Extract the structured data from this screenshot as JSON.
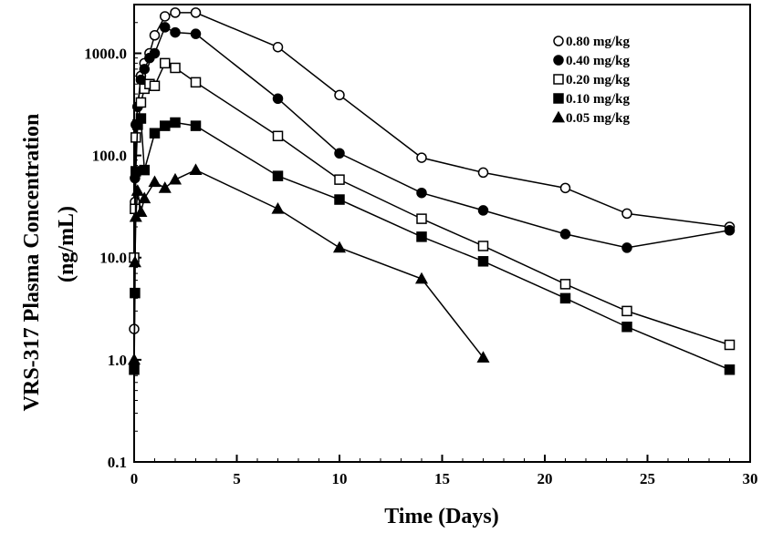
{
  "chart_data": {
    "type": "line",
    "yscale": "log",
    "xlabel": "Time (Days)",
    "ylabel_line1": "VRS-317 Plasma Concentration",
    "ylabel_line2": "(ng/mL)",
    "xlim": [
      0,
      30
    ],
    "ylim": [
      0.1,
      3000
    ],
    "x_ticks": [
      0,
      5,
      10,
      15,
      20,
      25,
      30
    ],
    "x_tick_labels": [
      "0",
      "5",
      "10",
      "15",
      "20",
      "25",
      "30"
    ],
    "y_ticks": [
      0.1,
      1,
      10,
      100,
      1000
    ],
    "y_tick_labels": [
      "0.1",
      "1.0",
      "10.0",
      "100.0",
      "1000.0"
    ],
    "grid": false,
    "legend_position": "top-right",
    "series": [
      {
        "name": "0.80 mg/kg",
        "marker": "circle-open",
        "x": [
          0,
          0.04,
          0.08,
          0.17,
          0.33,
          0.5,
          0.75,
          1,
          1.5,
          2,
          3,
          7,
          10,
          14,
          17,
          21,
          24,
          29
        ],
        "y": [
          2,
          35,
          150,
          300,
          600,
          800,
          1000,
          1500,
          2300,
          2500,
          2500,
          1150,
          390,
          95,
          68,
          48,
          27,
          20
        ]
      },
      {
        "name": "0.40 mg/kg",
        "marker": "circle-filled",
        "x": [
          0,
          0.04,
          0.08,
          0.17,
          0.33,
          0.5,
          0.75,
          1,
          1.5,
          2,
          3,
          7,
          10,
          14,
          17,
          21,
          24,
          29
        ],
        "y": [
          10,
          60,
          200,
          300,
          550,
          700,
          900,
          1000,
          1800,
          1600,
          1550,
          360,
          105,
          43,
          29,
          17,
          12.5,
          18.5
        ]
      },
      {
        "name": "0.20 mg/kg",
        "marker": "square-open",
        "x": [
          0,
          0.04,
          0.08,
          0.17,
          0.33,
          0.5,
          0.75,
          1,
          1.5,
          2,
          3,
          7,
          10,
          14,
          17,
          21,
          24,
          29
        ],
        "y": [
          10,
          30,
          150,
          200,
          330,
          450,
          500,
          480,
          800,
          720,
          520,
          155,
          58,
          24,
          13,
          5.5,
          3,
          1.4
        ]
      },
      {
        "name": "0.10 mg/kg",
        "marker": "square-filled",
        "x": [
          0,
          0.04,
          0.08,
          0.17,
          0.33,
          0.5,
          1,
          1.5,
          2,
          3,
          7,
          10,
          14,
          17,
          21,
          24,
          29
        ],
        "y": [
          0.8,
          4.5,
          70,
          200,
          230,
          72,
          165,
          195,
          210,
          195,
          63,
          37,
          16,
          9.2,
          4,
          2.1,
          0.8
        ]
      },
      {
        "name": "0.05 mg/kg",
        "marker": "triangle-filled",
        "x": [
          0,
          0.04,
          0.08,
          0.17,
          0.33,
          0.5,
          1,
          1.5,
          2,
          3,
          7,
          10,
          14,
          17
        ],
        "y": [
          1,
          9,
          25,
          45,
          28,
          38,
          55,
          48,
          58,
          72,
          30,
          12.5,
          6.2,
          1.05
        ]
      }
    ]
  }
}
